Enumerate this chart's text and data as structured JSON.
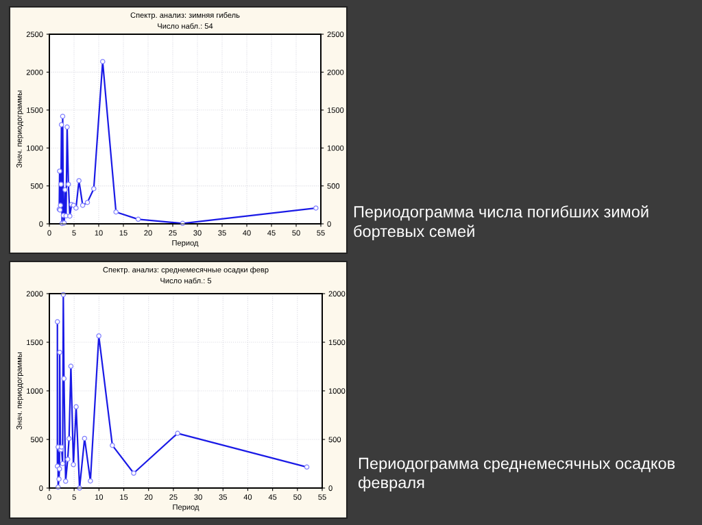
{
  "chart_data": [
    {
      "type": "line",
      "title": "Спектр. анализ: зимняя гибель",
      "subtitle": "Число набл.: 54",
      "xlabel": "Период",
      "ylabel": "Знач. периодограммы",
      "x": [
        2,
        2.08,
        2.16,
        2.25,
        2.35,
        2.45,
        2.57,
        2.7,
        2.84,
        3,
        3.18,
        3.38,
        3.6,
        3.86,
        4.15,
        4.5,
        4.91,
        5.4,
        6,
        6.75,
        7.71,
        9,
        10.8,
        13.5,
        18,
        27,
        54
      ],
      "series": [
        {
          "color": "#1a1ae6",
          "values": [
            192,
            695,
            183,
            244,
            521,
            1307,
            5,
            1418,
            111,
            12,
            449,
            105,
            1276,
            521,
            102,
            256,
            244,
            208,
            569,
            244,
            283,
            463,
            2140,
            156,
            60,
            6,
            208
          ]
        }
      ],
      "xlim": [
        0,
        55
      ],
      "xticks": [
        0,
        5,
        10,
        15,
        20,
        25,
        30,
        35,
        40,
        45,
        50,
        55
      ],
      "ylim": [
        0,
        2500
      ],
      "yticks": [
        0,
        500,
        1000,
        1500,
        2000,
        2500
      ],
      "y2lim": [
        0,
        2500
      ],
      "y2ticks": [
        0,
        500,
        1000,
        1500,
        2000,
        2500
      ],
      "grid": true,
      "marker": "circle",
      "line_style": "solid",
      "annotations": [
        "Периодограмма числа погибших зимой бортевых семей"
      ]
    },
    {
      "type": "line",
      "title": "Спектр. анализ: среднемесячные осадки февр",
      "subtitle": "Число набл.: 5",
      "xlabel": "Период",
      "ylabel": "Знач. периодограммы",
      "x": [
        1.62,
        1.62,
        1.76,
        1.76,
        1.94,
        2.04,
        2.08,
        2.22,
        2.35,
        2.45,
        2.67,
        2.81,
        2.95,
        3.28,
        3.7,
        3.97,
        4.34,
        4.85,
        5.4,
        6.09,
        7.1,
        8.27,
        9.97,
        12.7,
        17.0,
        25.85,
        51.9
      ],
      "series": [
        {
          "color": "#1a1ae6",
          "values": [
            1711,
            225,
            422,
            9,
            92,
            197,
            1396,
            394,
            394,
            422,
            251,
            1990,
            1126,
            70,
            296,
            509,
            1253,
            241,
            836,
            0,
            511,
            73,
            1565,
            439,
            153,
            563,
            216
          ]
        }
      ],
      "xlim": [
        0,
        55
      ],
      "xticks": [
        0,
        5,
        10,
        15,
        20,
        25,
        30,
        35,
        40,
        45,
        50,
        55
      ],
      "ylim": [
        0,
        2000
      ],
      "yticks": [
        0,
        500,
        1000,
        1500,
        2000
      ],
      "y2lim": [
        0,
        2000
      ],
      "y2ticks": [
        0,
        500,
        1000,
        1500,
        2000
      ],
      "grid": true,
      "marker": "circle",
      "line_style": "solid",
      "annotations": [
        "Периодограмма среднемесячных осадков февраля"
      ]
    }
  ]
}
